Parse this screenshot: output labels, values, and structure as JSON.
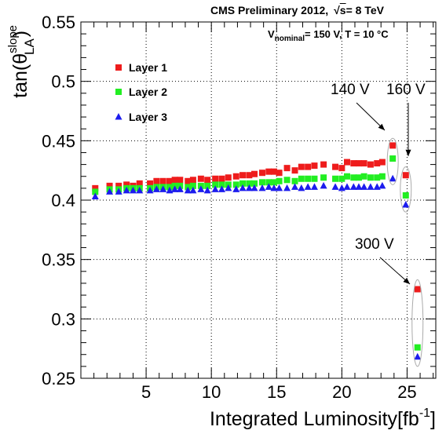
{
  "header": {
    "experiment": "CMS Preliminary 2012,",
    "energy_sqrt": "s",
    "energy_value": "= 8 TeV",
    "cond_v": "V",
    "cond_sub": "nominal",
    "cond_rest": "= 150 V, T = 10  °C"
  },
  "annotations": {
    "a140": "140 V",
    "a160": "160 V",
    "a300": "300 V"
  },
  "chart_data": {
    "type": "scatter",
    "xlabel": "Integrated Luminosity[fb",
    "xlabel_sup": "-1",
    "xlabel_close": "]",
    "ylabel_main": "tan(θ",
    "ylabel_sup": "slope",
    "ylabel_sub": "LA",
    "ylabel_close": ")",
    "xlim": [
      0,
      27.2
    ],
    "ylim": [
      0.25,
      0.55
    ],
    "xticks": [
      5,
      10,
      15,
      20,
      25
    ],
    "xtick_labels": [
      "5",
      "10",
      "15",
      "20",
      "25"
    ],
    "yticks": [
      0.25,
      0.3,
      0.35,
      0.4,
      0.45,
      0.5,
      0.55
    ],
    "ytick_labels": [
      "0.25",
      "0.3",
      "0.35",
      "0.4",
      "0.45",
      "0.5",
      "0.55"
    ],
    "grid": true,
    "legend_position": "top-left",
    "x": [
      1.1,
      2.2,
      2.9,
      3.5,
      4.0,
      4.5,
      5.3,
      5.8,
      6.3,
      6.8,
      7.2,
      7.6,
      8.2,
      8.6,
      9.2,
      9.7,
      10.3,
      10.8,
      11.3,
      11.9,
      12.4,
      12.9,
      13.3,
      13.9,
      14.4,
      14.8,
      15.2,
      15.8,
      16.4,
      16.9,
      17.4,
      17.9,
      18.6,
      19.5,
      20.0,
      20.4,
      20.9,
      21.3,
      21.7,
      22.2,
      22.7,
      23.1,
      23.9,
      24.9,
      25.8
    ],
    "series": [
      {
        "name": "Layer 1",
        "marker": "square",
        "color": "#ee1c1c",
        "values": [
          0.41,
          0.412,
          0.412,
          0.413,
          0.412,
          0.414,
          0.414,
          0.416,
          0.416,
          0.416,
          0.417,
          0.417,
          0.416,
          0.417,
          0.418,
          0.417,
          0.418,
          0.418,
          0.419,
          0.42,
          0.421,
          0.421,
          0.422,
          0.423,
          0.424,
          0.424,
          0.423,
          0.427,
          0.425,
          0.428,
          0.428,
          0.429,
          0.43,
          0.428,
          0.427,
          0.432,
          0.431,
          0.431,
          0.431,
          0.43,
          0.431,
          0.432,
          0.446,
          0.421,
          0.325
        ]
      },
      {
        "name": "Layer 2",
        "marker": "square",
        "color": "#22ee22",
        "values": [
          0.407,
          0.409,
          0.409,
          0.41,
          0.41,
          0.41,
          0.41,
          0.411,
          0.411,
          0.411,
          0.412,
          0.412,
          0.411,
          0.412,
          0.412,
          0.412,
          0.413,
          0.413,
          0.413,
          0.413,
          0.414,
          0.414,
          0.414,
          0.415,
          0.415,
          0.415,
          0.416,
          0.417,
          0.416,
          0.418,
          0.418,
          0.418,
          0.419,
          0.418,
          0.418,
          0.42,
          0.419,
          0.419,
          0.42,
          0.419,
          0.419,
          0.42,
          0.435,
          0.404,
          0.276
        ]
      },
      {
        "name": "Layer 3",
        "marker": "triangle",
        "color": "#1c1cee",
        "values": [
          0.403,
          0.407,
          0.407,
          0.408,
          0.408,
          0.408,
          0.408,
          0.409,
          0.409,
          0.408,
          0.409,
          0.409,
          0.408,
          0.408,
          0.409,
          0.408,
          0.409,
          0.409,
          0.41,
          0.409,
          0.41,
          0.41,
          0.41,
          0.41,
          0.411,
          0.41,
          0.41,
          0.41,
          0.411,
          0.41,
          0.411,
          0.411,
          0.412,
          0.411,
          0.41,
          0.411,
          0.411,
          0.411,
          0.411,
          0.411,
          0.411,
          0.412,
          0.418,
          0.396,
          0.268
        ]
      }
    ]
  }
}
